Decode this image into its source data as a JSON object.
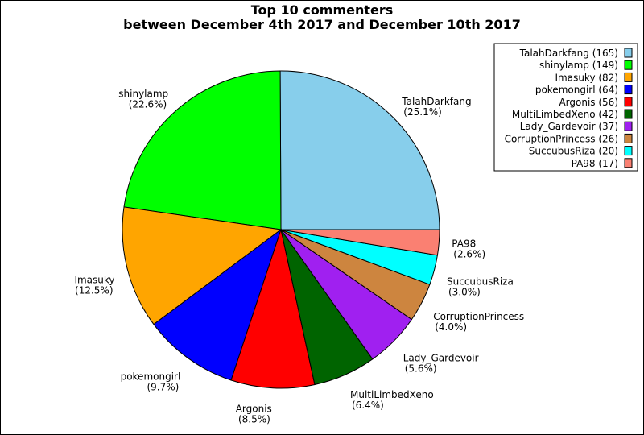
{
  "chart_data": {
    "type": "pie",
    "title_line1": "Top 10 commenters",
    "title_line2": "between December 4th 2017 and December 10th 2017",
    "start_angle_deg": 0,
    "direction": "counterclockwise",
    "legend_placement": "top-right",
    "slices": [
      {
        "name": "TalahDarkfang",
        "value": 165,
        "percent": "25.1%",
        "color": "#87CEEB",
        "legend": "TalahDarkfang (165)"
      },
      {
        "name": "shinylamp",
        "value": 149,
        "percent": "22.6%",
        "color": "#00FF00",
        "legend": "shinylamp (149)"
      },
      {
        "name": "Imasuky",
        "value": 82,
        "percent": "12.5%",
        "color": "#FFA500",
        "legend": "Imasuky (82)"
      },
      {
        "name": "pokemongirl",
        "value": 64,
        "percent": "9.7%",
        "color": "#0000FF",
        "legend": "pokemongirl (64)"
      },
      {
        "name": "Argonis",
        "value": 56,
        "percent": "8.5%",
        "color": "#FF0000",
        "legend": "Argonis (56)"
      },
      {
        "name": "MultiLimbedXeno",
        "value": 42,
        "percent": "6.4%",
        "color": "#006400",
        "legend": "MultiLimbedXeno (42)"
      },
      {
        "name": "Lady_Gardevoir",
        "value": 37,
        "percent": "5.6%",
        "color": "#A020F0",
        "legend": "Lady_Gardevoir (37)"
      },
      {
        "name": "CorruptionPrincess",
        "value": 26,
        "percent": "4.0%",
        "color": "#CD853F",
        "legend": "CorruptionPrincess (26)"
      },
      {
        "name": "SuccubusRiza",
        "value": 20,
        "percent": "3.0%",
        "color": "#00FFFF",
        "legend": "SuccubusRiza (20)"
      },
      {
        "name": "PA98",
        "value": 17,
        "percent": "2.6%",
        "color": "#FA8072",
        "legend": "PA98 (17)"
      }
    ]
  }
}
